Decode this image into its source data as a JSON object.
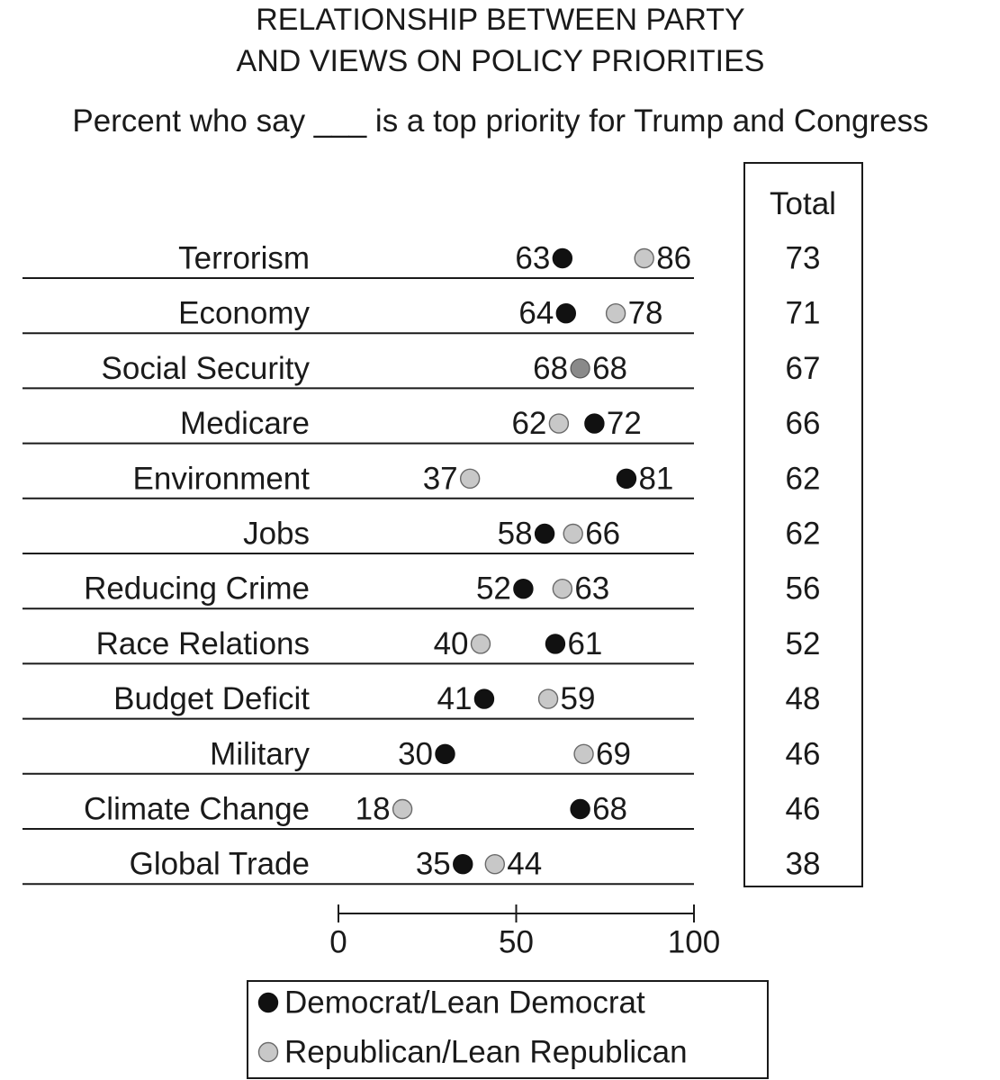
{
  "chart_data": {
    "type": "scatter",
    "title_lines": [
      "RELATIONSHIP BETWEEN PARTY",
      "AND VIEWS ON POLICY PRIORITIES"
    ],
    "subtitle": "Percent who say ___ is a top priority for Trump and Congress",
    "categories": [
      "Terrorism",
      "Economy",
      "Social Security",
      "Medicare",
      "Environment",
      "Jobs",
      "Reducing Crime",
      "Race Relations",
      "Budget Deficit",
      "Military",
      "Climate Change",
      "Global Trade"
    ],
    "series": [
      {
        "name": "Democrat/Lean Democrat",
        "color": "#111111",
        "values": [
          63,
          64,
          68,
          72,
          81,
          58,
          52,
          61,
          41,
          30,
          68,
          35
        ]
      },
      {
        "name": "Republican/Lean Republican",
        "color": "#c8c8c8",
        "values": [
          86,
          78,
          68,
          62,
          37,
          66,
          63,
          40,
          59,
          69,
          18,
          44
        ]
      }
    ],
    "overlap_color": "#8a8a8a",
    "total_header": "Total",
    "totals": [
      73,
      71,
      67,
      66,
      62,
      62,
      56,
      52,
      48,
      46,
      46,
      38
    ],
    "xlim": [
      0,
      100
    ],
    "xticks": [
      0,
      50,
      100
    ],
    "grid": false,
    "legend_position": "bottom-center"
  }
}
